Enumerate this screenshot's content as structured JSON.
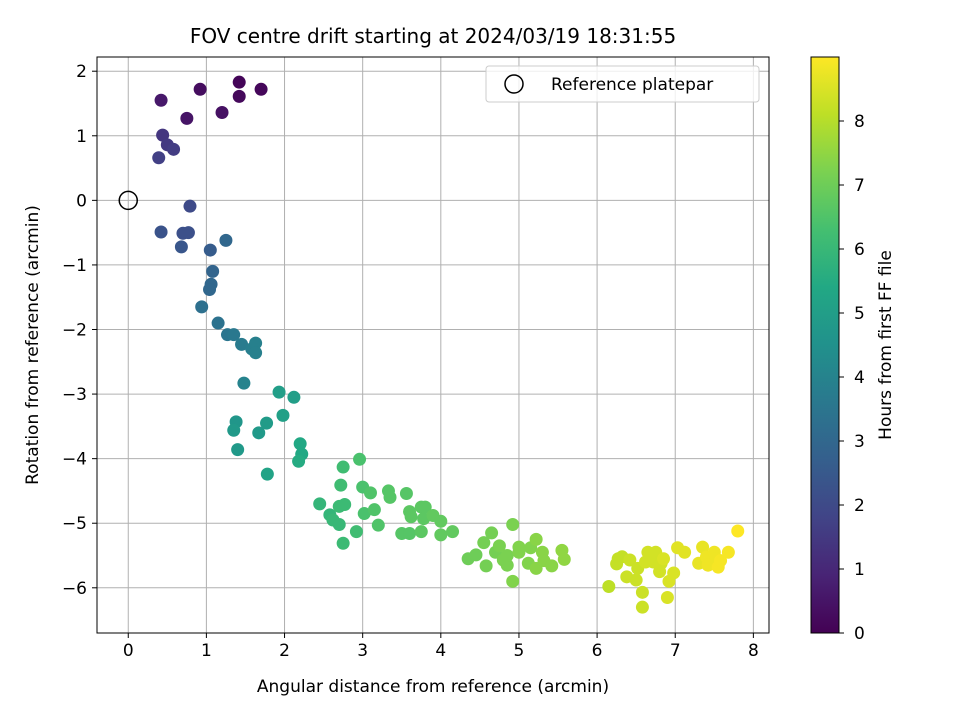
{
  "chart_data": {
    "type": "scatter",
    "title": "FOV centre drift starting at 2024/03/19 18:31:55",
    "xlabel": "Angular distance from reference (arcmin)",
    "ylabel": "Rotation from reference (arcmin)",
    "xlim": [
      -0.4,
      8.2
    ],
    "ylim": [
      -6.7,
      2.22
    ],
    "xticks": [
      "0",
      "1",
      "2",
      "3",
      "4",
      "5",
      "6",
      "7",
      "8"
    ],
    "yticks": [
      "2",
      "1",
      "0",
      "−1",
      "−2",
      "−3",
      "−4",
      "−5",
      "−6"
    ],
    "grid": true,
    "legend": {
      "position": "top-right",
      "entries": [
        "Reference platepar"
      ]
    },
    "reference_point": {
      "x": 0,
      "y": 0,
      "label": "Reference platepar"
    },
    "colorbar": {
      "label": "Hours from first FF file",
      "range": [
        0,
        9
      ],
      "ticks": [
        "0",
        "1",
        "2",
        "3",
        "4",
        "5",
        "6",
        "7",
        "8"
      ],
      "colormap": "viridis"
    },
    "points": [
      {
        "x": 0.42,
        "y": 1.55,
        "c": 0.6
      },
      {
        "x": 0.92,
        "y": 1.72,
        "c": 0.3
      },
      {
        "x": 1.42,
        "y": 1.83,
        "c": 0.1
      },
      {
        "x": 1.42,
        "y": 1.61,
        "c": 0.2
      },
      {
        "x": 1.7,
        "y": 1.72,
        "c": 0.15
      },
      {
        "x": 1.2,
        "y": 1.36,
        "c": 0.4
      },
      {
        "x": 0.75,
        "y": 1.27,
        "c": 0.5
      },
      {
        "x": 0.44,
        "y": 1.01,
        "c": 1.4
      },
      {
        "x": 0.5,
        "y": 0.86,
        "c": 1.5
      },
      {
        "x": 0.58,
        "y": 0.79,
        "c": 1.6
      },
      {
        "x": 0.39,
        "y": 0.66,
        "c": 1.7
      },
      {
        "x": 0.79,
        "y": -0.09,
        "c": 2.0
      },
      {
        "x": 0.42,
        "y": -0.49,
        "c": 2.3
      },
      {
        "x": 0.7,
        "y": -0.51,
        "c": 2.2
      },
      {
        "x": 0.77,
        "y": -0.5,
        "c": 2.2
      },
      {
        "x": 0.68,
        "y": -0.72,
        "c": 2.4
      },
      {
        "x": 1.05,
        "y": -0.77,
        "c": 2.6
      },
      {
        "x": 1.25,
        "y": -0.62,
        "c": 3.0
      },
      {
        "x": 1.08,
        "y": -1.1,
        "c": 2.9
      },
      {
        "x": 1.06,
        "y": -1.3,
        "c": 3.0
      },
      {
        "x": 1.04,
        "y": -1.38,
        "c": 3.0
      },
      {
        "x": 0.94,
        "y": -1.65,
        "c": 3.3
      },
      {
        "x": 1.15,
        "y": -1.9,
        "c": 3.4
      },
      {
        "x": 1.27,
        "y": -2.08,
        "c": 3.5
      },
      {
        "x": 1.35,
        "y": -2.08,
        "c": 3.6
      },
      {
        "x": 1.45,
        "y": -2.23,
        "c": 3.7
      },
      {
        "x": 1.58,
        "y": -2.3,
        "c": 3.8
      },
      {
        "x": 1.63,
        "y": -2.21,
        "c": 3.9
      },
      {
        "x": 1.63,
        "y": -2.36,
        "c": 3.9
      },
      {
        "x": 1.48,
        "y": -2.83,
        "c": 4.0
      },
      {
        "x": 1.38,
        "y": -3.43,
        "c": 4.7
      },
      {
        "x": 1.35,
        "y": -3.56,
        "c": 4.8
      },
      {
        "x": 1.4,
        "y": -3.86,
        "c": 4.8
      },
      {
        "x": 1.67,
        "y": -3.6,
        "c": 4.8
      },
      {
        "x": 1.77,
        "y": -3.45,
        "c": 4.9
      },
      {
        "x": 1.93,
        "y": -2.97,
        "c": 5.0
      },
      {
        "x": 2.12,
        "y": -3.05,
        "c": 5.0
      },
      {
        "x": 1.98,
        "y": -3.33,
        "c": 5.1
      },
      {
        "x": 1.78,
        "y": -4.24,
        "c": 5.2
      },
      {
        "x": 2.2,
        "y": -3.77,
        "c": 5.4
      },
      {
        "x": 2.22,
        "y": -3.93,
        "c": 5.4
      },
      {
        "x": 2.18,
        "y": -4.04,
        "c": 5.5
      },
      {
        "x": 2.45,
        "y": -4.7,
        "c": 5.9
      },
      {
        "x": 2.58,
        "y": -4.87,
        "c": 5.9
      },
      {
        "x": 2.62,
        "y": -4.95,
        "c": 6.0
      },
      {
        "x": 2.7,
        "y": -5.02,
        "c": 6.0
      },
      {
        "x": 2.7,
        "y": -4.74,
        "c": 6.1
      },
      {
        "x": 2.77,
        "y": -4.71,
        "c": 6.1
      },
      {
        "x": 2.72,
        "y": -4.41,
        "c": 6.2
      },
      {
        "x": 2.75,
        "y": -4.13,
        "c": 6.2
      },
      {
        "x": 2.75,
        "y": -5.31,
        "c": 6.1
      },
      {
        "x": 2.92,
        "y": -5.13,
        "c": 6.2
      },
      {
        "x": 2.96,
        "y": -4.01,
        "c": 6.4
      },
      {
        "x": 3.0,
        "y": -4.44,
        "c": 6.4
      },
      {
        "x": 3.02,
        "y": -4.85,
        "c": 6.4
      },
      {
        "x": 3.1,
        "y": -4.53,
        "c": 6.5
      },
      {
        "x": 3.15,
        "y": -4.79,
        "c": 6.5
      },
      {
        "x": 3.2,
        "y": -5.03,
        "c": 6.5
      },
      {
        "x": 3.33,
        "y": -4.5,
        "c": 6.6
      },
      {
        "x": 3.35,
        "y": -4.6,
        "c": 6.6
      },
      {
        "x": 3.5,
        "y": -5.16,
        "c": 6.6
      },
      {
        "x": 3.56,
        "y": -4.54,
        "c": 6.6
      },
      {
        "x": 3.6,
        "y": -4.82,
        "c": 6.7
      },
      {
        "x": 3.62,
        "y": -4.9,
        "c": 6.7
      },
      {
        "x": 3.6,
        "y": -5.16,
        "c": 6.6
      },
      {
        "x": 3.75,
        "y": -4.75,
        "c": 6.7
      },
      {
        "x": 3.8,
        "y": -4.75,
        "c": 6.7
      },
      {
        "x": 3.78,
        "y": -4.93,
        "c": 6.7
      },
      {
        "x": 3.75,
        "y": -5.13,
        "c": 6.7
      },
      {
        "x": 3.9,
        "y": -4.88,
        "c": 6.8
      },
      {
        "x": 4.0,
        "y": -4.97,
        "c": 6.8
      },
      {
        "x": 4.0,
        "y": -5.18,
        "c": 6.8
      },
      {
        "x": 4.15,
        "y": -5.13,
        "c": 6.8
      },
      {
        "x": 4.35,
        "y": -5.55,
        "c": 7.0
      },
      {
        "x": 4.45,
        "y": -5.49,
        "c": 7.0
      },
      {
        "x": 4.55,
        "y": -5.3,
        "c": 7.1
      },
      {
        "x": 4.58,
        "y": -5.66,
        "c": 7.1
      },
      {
        "x": 4.65,
        "y": -5.15,
        "c": 7.1
      },
      {
        "x": 4.7,
        "y": -5.45,
        "c": 7.1
      },
      {
        "x": 4.75,
        "y": -5.35,
        "c": 7.2
      },
      {
        "x": 4.8,
        "y": -5.57,
        "c": 7.2
      },
      {
        "x": 4.85,
        "y": -5.65,
        "c": 7.2
      },
      {
        "x": 4.85,
        "y": -5.5,
        "c": 7.2
      },
      {
        "x": 4.92,
        "y": -5.02,
        "c": 7.2
      },
      {
        "x": 4.92,
        "y": -5.9,
        "c": 7.3
      },
      {
        "x": 5.0,
        "y": -5.45,
        "c": 7.3
      },
      {
        "x": 5.0,
        "y": -5.37,
        "c": 7.3
      },
      {
        "x": 5.12,
        "y": -5.62,
        "c": 7.3
      },
      {
        "x": 5.15,
        "y": -5.38,
        "c": 7.3
      },
      {
        "x": 5.22,
        "y": -5.25,
        "c": 7.4
      },
      {
        "x": 5.22,
        "y": -5.7,
        "c": 7.4
      },
      {
        "x": 5.3,
        "y": -5.45,
        "c": 7.4
      },
      {
        "x": 5.32,
        "y": -5.58,
        "c": 7.4
      },
      {
        "x": 5.42,
        "y": -5.66,
        "c": 7.4
      },
      {
        "x": 5.55,
        "y": -5.42,
        "c": 7.5
      },
      {
        "x": 5.58,
        "y": -5.56,
        "c": 7.5
      },
      {
        "x": 6.15,
        "y": -5.98,
        "c": 8.1
      },
      {
        "x": 6.25,
        "y": -5.63,
        "c": 8.2
      },
      {
        "x": 6.27,
        "y": -5.55,
        "c": 8.2
      },
      {
        "x": 6.32,
        "y": -5.52,
        "c": 8.2
      },
      {
        "x": 6.38,
        "y": -5.83,
        "c": 8.3
      },
      {
        "x": 6.42,
        "y": -5.57,
        "c": 8.3
      },
      {
        "x": 6.5,
        "y": -5.88,
        "c": 8.3
      },
      {
        "x": 6.52,
        "y": -5.7,
        "c": 8.3
      },
      {
        "x": 6.58,
        "y": -6.3,
        "c": 8.3
      },
      {
        "x": 6.58,
        "y": -6.07,
        "c": 8.3
      },
      {
        "x": 6.62,
        "y": -5.6,
        "c": 8.4
      },
      {
        "x": 6.65,
        "y": -5.45,
        "c": 8.4
      },
      {
        "x": 6.72,
        "y": -5.6,
        "c": 8.4
      },
      {
        "x": 6.75,
        "y": -5.45,
        "c": 8.4
      },
      {
        "x": 6.8,
        "y": -5.75,
        "c": 8.4
      },
      {
        "x": 6.82,
        "y": -5.62,
        "c": 8.4
      },
      {
        "x": 6.85,
        "y": -5.55,
        "c": 8.5
      },
      {
        "x": 6.9,
        "y": -6.15,
        "c": 8.5
      },
      {
        "x": 6.92,
        "y": -5.9,
        "c": 8.5
      },
      {
        "x": 6.98,
        "y": -5.77,
        "c": 8.5
      },
      {
        "x": 7.03,
        "y": -5.38,
        "c": 8.6
      },
      {
        "x": 7.12,
        "y": -5.45,
        "c": 8.6
      },
      {
        "x": 7.3,
        "y": -5.62,
        "c": 8.7
      },
      {
        "x": 7.35,
        "y": -5.37,
        "c": 8.7
      },
      {
        "x": 7.4,
        "y": -5.52,
        "c": 8.8
      },
      {
        "x": 7.42,
        "y": -5.65,
        "c": 8.8
      },
      {
        "x": 7.5,
        "y": -5.45,
        "c": 8.8
      },
      {
        "x": 7.52,
        "y": -5.55,
        "c": 8.8
      },
      {
        "x": 7.55,
        "y": -5.68,
        "c": 8.9
      },
      {
        "x": 7.58,
        "y": -5.58,
        "c": 8.9
      },
      {
        "x": 7.68,
        "y": -5.45,
        "c": 8.9
      },
      {
        "x": 7.8,
        "y": -5.12,
        "c": 9.0
      }
    ]
  }
}
